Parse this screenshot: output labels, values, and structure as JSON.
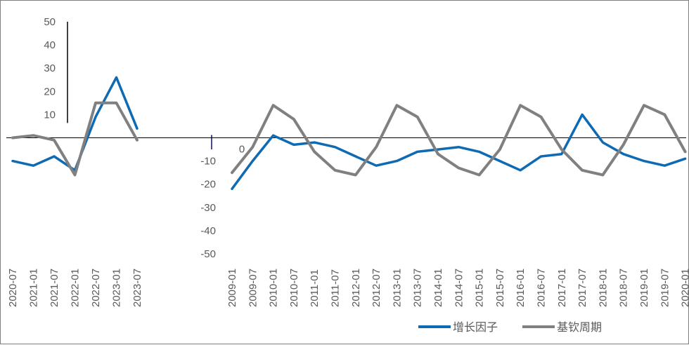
{
  "chart_data": {
    "type": "line",
    "title": "",
    "xlabel": "",
    "ylabel": "",
    "ylim": [
      -50,
      50
    ],
    "y_ticks": [
      50,
      40,
      30,
      20,
      10,
      0,
      -10,
      -20,
      -30,
      -40,
      -50
    ],
    "grid": false,
    "legend_position": "bottom-right",
    "colors": {
      "growth": "#0d6ab3",
      "kitchin": "#808080",
      "axis": "#000000",
      "text": "#595959"
    },
    "panels": [
      {
        "x": [
          "2020-07",
          "2021-01",
          "2021-07",
          "2022-01",
          "2022-07",
          "2023-01",
          "2023-07"
        ],
        "series": [
          {
            "name": "增长因子",
            "values": [
              -10,
              -12,
              -8,
              -14,
              9,
              26,
              4
            ]
          },
          {
            "name": "基钦周期",
            "values": [
              0,
              1,
              -1,
              -16,
              15,
              15,
              -1
            ]
          }
        ]
      },
      {
        "x": [
          "2009-01",
          "2009-07",
          "2010-01",
          "2010-07",
          "2011-01",
          "2011-07",
          "2012-01",
          "2012-07",
          "2013-01",
          "2013-07",
          "2014-01",
          "2014-07",
          "2015-01",
          "2015-07",
          "2016-01",
          "2016-07",
          "2017-01",
          "2017-07",
          "2018-01",
          "2018-07",
          "2019-01",
          "2019-07",
          "2020-01"
        ],
        "series": [
          {
            "name": "增长因子",
            "values": [
              -22,
              -10,
              1,
              -3,
              -2,
              -4,
              -8,
              -12,
              -10,
              -6,
              -5,
              -4,
              -6,
              -10,
              -14,
              -8,
              -7,
              10,
              -2,
              -7,
              -10,
              -12,
              -9
            ]
          },
          {
            "name": "基钦周期",
            "values": [
              -15,
              -4,
              14,
              8,
              -6,
              -14,
              -16,
              -4,
              14,
              9,
              -7,
              -13,
              -16,
              -5,
              14,
              9,
              -5,
              -14,
              -16,
              -3,
              14,
              10,
              -6
            ]
          }
        ]
      }
    ],
    "legend": [
      "增长因子",
      "基钦周期"
    ]
  }
}
